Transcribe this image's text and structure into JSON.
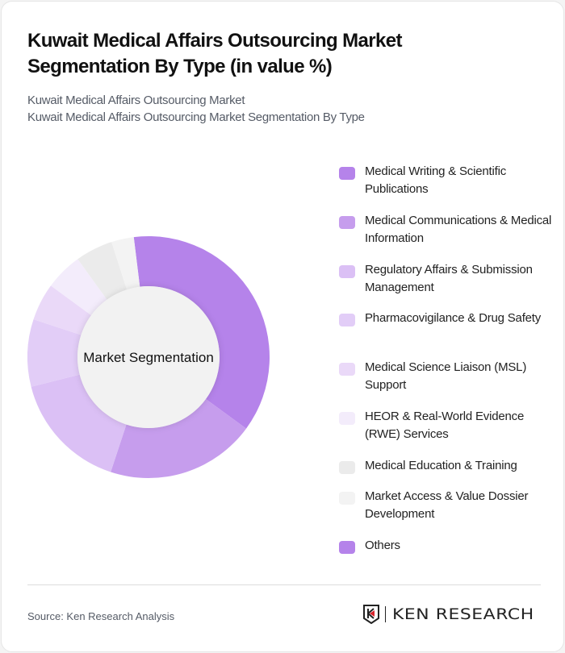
{
  "header": {
    "title": "Kuwait Medical Affairs Outsourcing Market Segmentation By Type (in value %)",
    "subtitle1": "Kuwait Medical Affairs Outsourcing Market",
    "subtitle2": "Kuwait Medical Affairs Outsourcing Market Segmentation By Type"
  },
  "chart_data": {
    "type": "pie",
    "variant": "donut",
    "center_label": "Market Segmentation",
    "categories": [
      "Medical Writing & Scientific Publications",
      "Medical Communications & Medical Information",
      "Regulatory Affairs & Submission Management",
      "Pharmacovigilance & Drug Safety",
      "Medical Science Liaison (MSL) Support",
      "HEOR & Real-World Evidence (RWE) Services",
      "Medical Education & Training",
      "Market Access & Value Dossier Development",
      "Others"
    ],
    "values": [
      37,
      20,
      16,
      9,
      5,
      5,
      5,
      3,
      0
    ],
    "colors": [
      "#b583ea",
      "#c69ded",
      "#dbc0f5",
      "#e2cdf7",
      "#ead9f8",
      "#f3ecfb",
      "#ebebeb",
      "#f3f3f3",
      "#b583ea"
    ],
    "legend_position": "right"
  },
  "footer": {
    "source": "Source: Ken Research Analysis",
    "logo_text": "KEN RESEARCH"
  }
}
